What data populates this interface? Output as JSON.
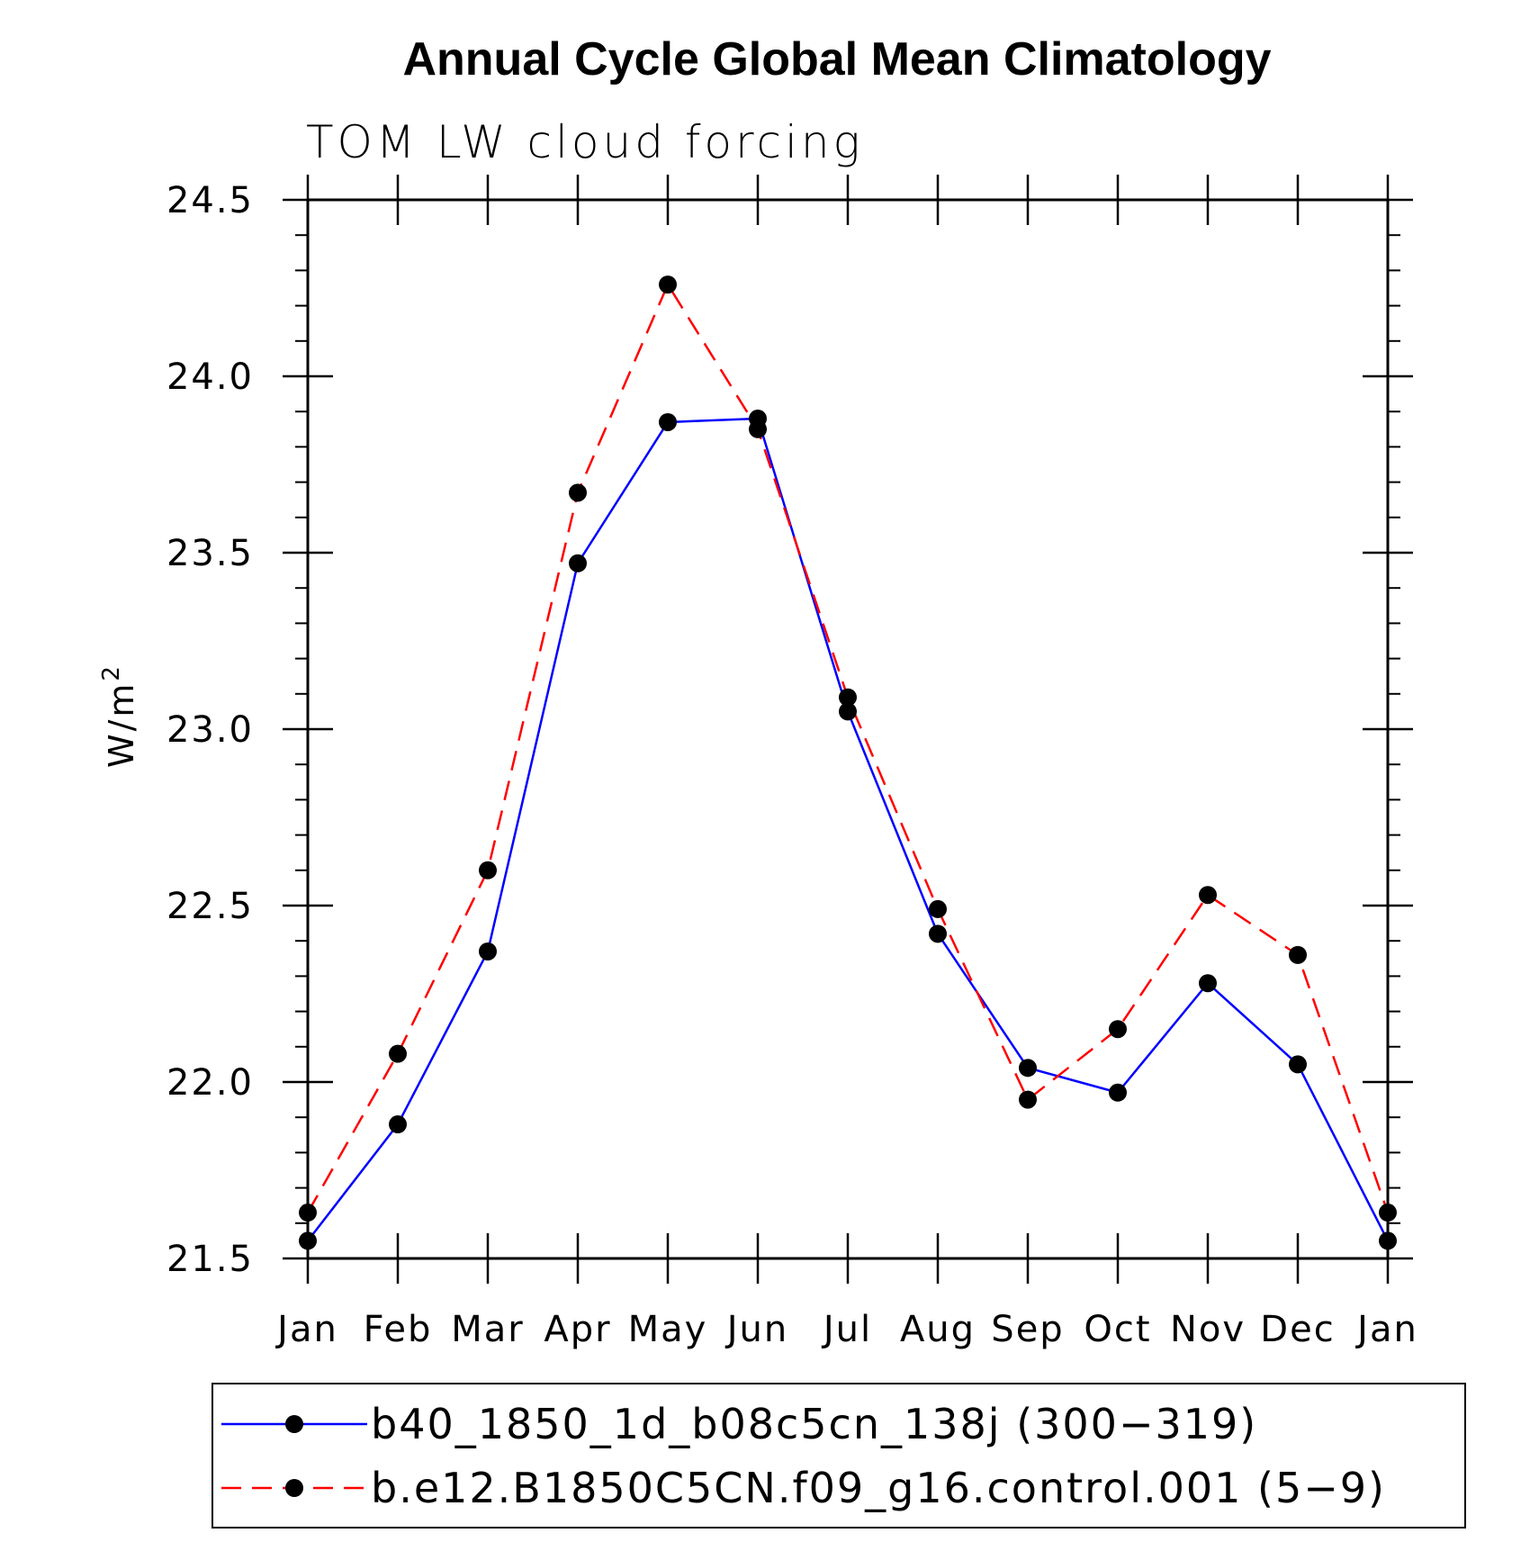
{
  "chart_data": {
    "type": "line",
    "title": "Annual Cycle Global Mean Climatology",
    "subtitle": "TOM LW cloud forcing",
    "ylabel": "W/m",
    "ylabel_superscript": "2",
    "xlabel": "",
    "categories": [
      "Jan",
      "Feb",
      "Mar",
      "Apr",
      "May",
      "Jun",
      "Jul",
      "Aug",
      "Sep",
      "Oct",
      "Nov",
      "Dec",
      "Jan"
    ],
    "ylim": [
      21.5,
      24.5
    ],
    "yticks": [
      "21.5",
      "22.0",
      "22.5",
      "23.0",
      "23.5",
      "24.0",
      "24.5"
    ],
    "grid": false,
    "legend_position": "bottom",
    "series": [
      {
        "name": "b40_1850_1d_b08c5cn_138j (300−319)",
        "color": "#0000ff",
        "style": "solid",
        "values": [
          21.55,
          21.88,
          22.37,
          23.47,
          23.87,
          23.88,
          23.05,
          22.42,
          22.04,
          21.97,
          22.28,
          22.05,
          21.55
        ]
      },
      {
        "name": "b.e12.B1850C5CN.f09_g16.control.001 (5−9)",
        "color": "#ff0000",
        "style": "dashed",
        "values": [
          21.63,
          22.08,
          22.6,
          23.67,
          24.26,
          23.85,
          23.09,
          22.49,
          21.95,
          22.15,
          22.53,
          22.36,
          21.63
        ]
      }
    ]
  }
}
